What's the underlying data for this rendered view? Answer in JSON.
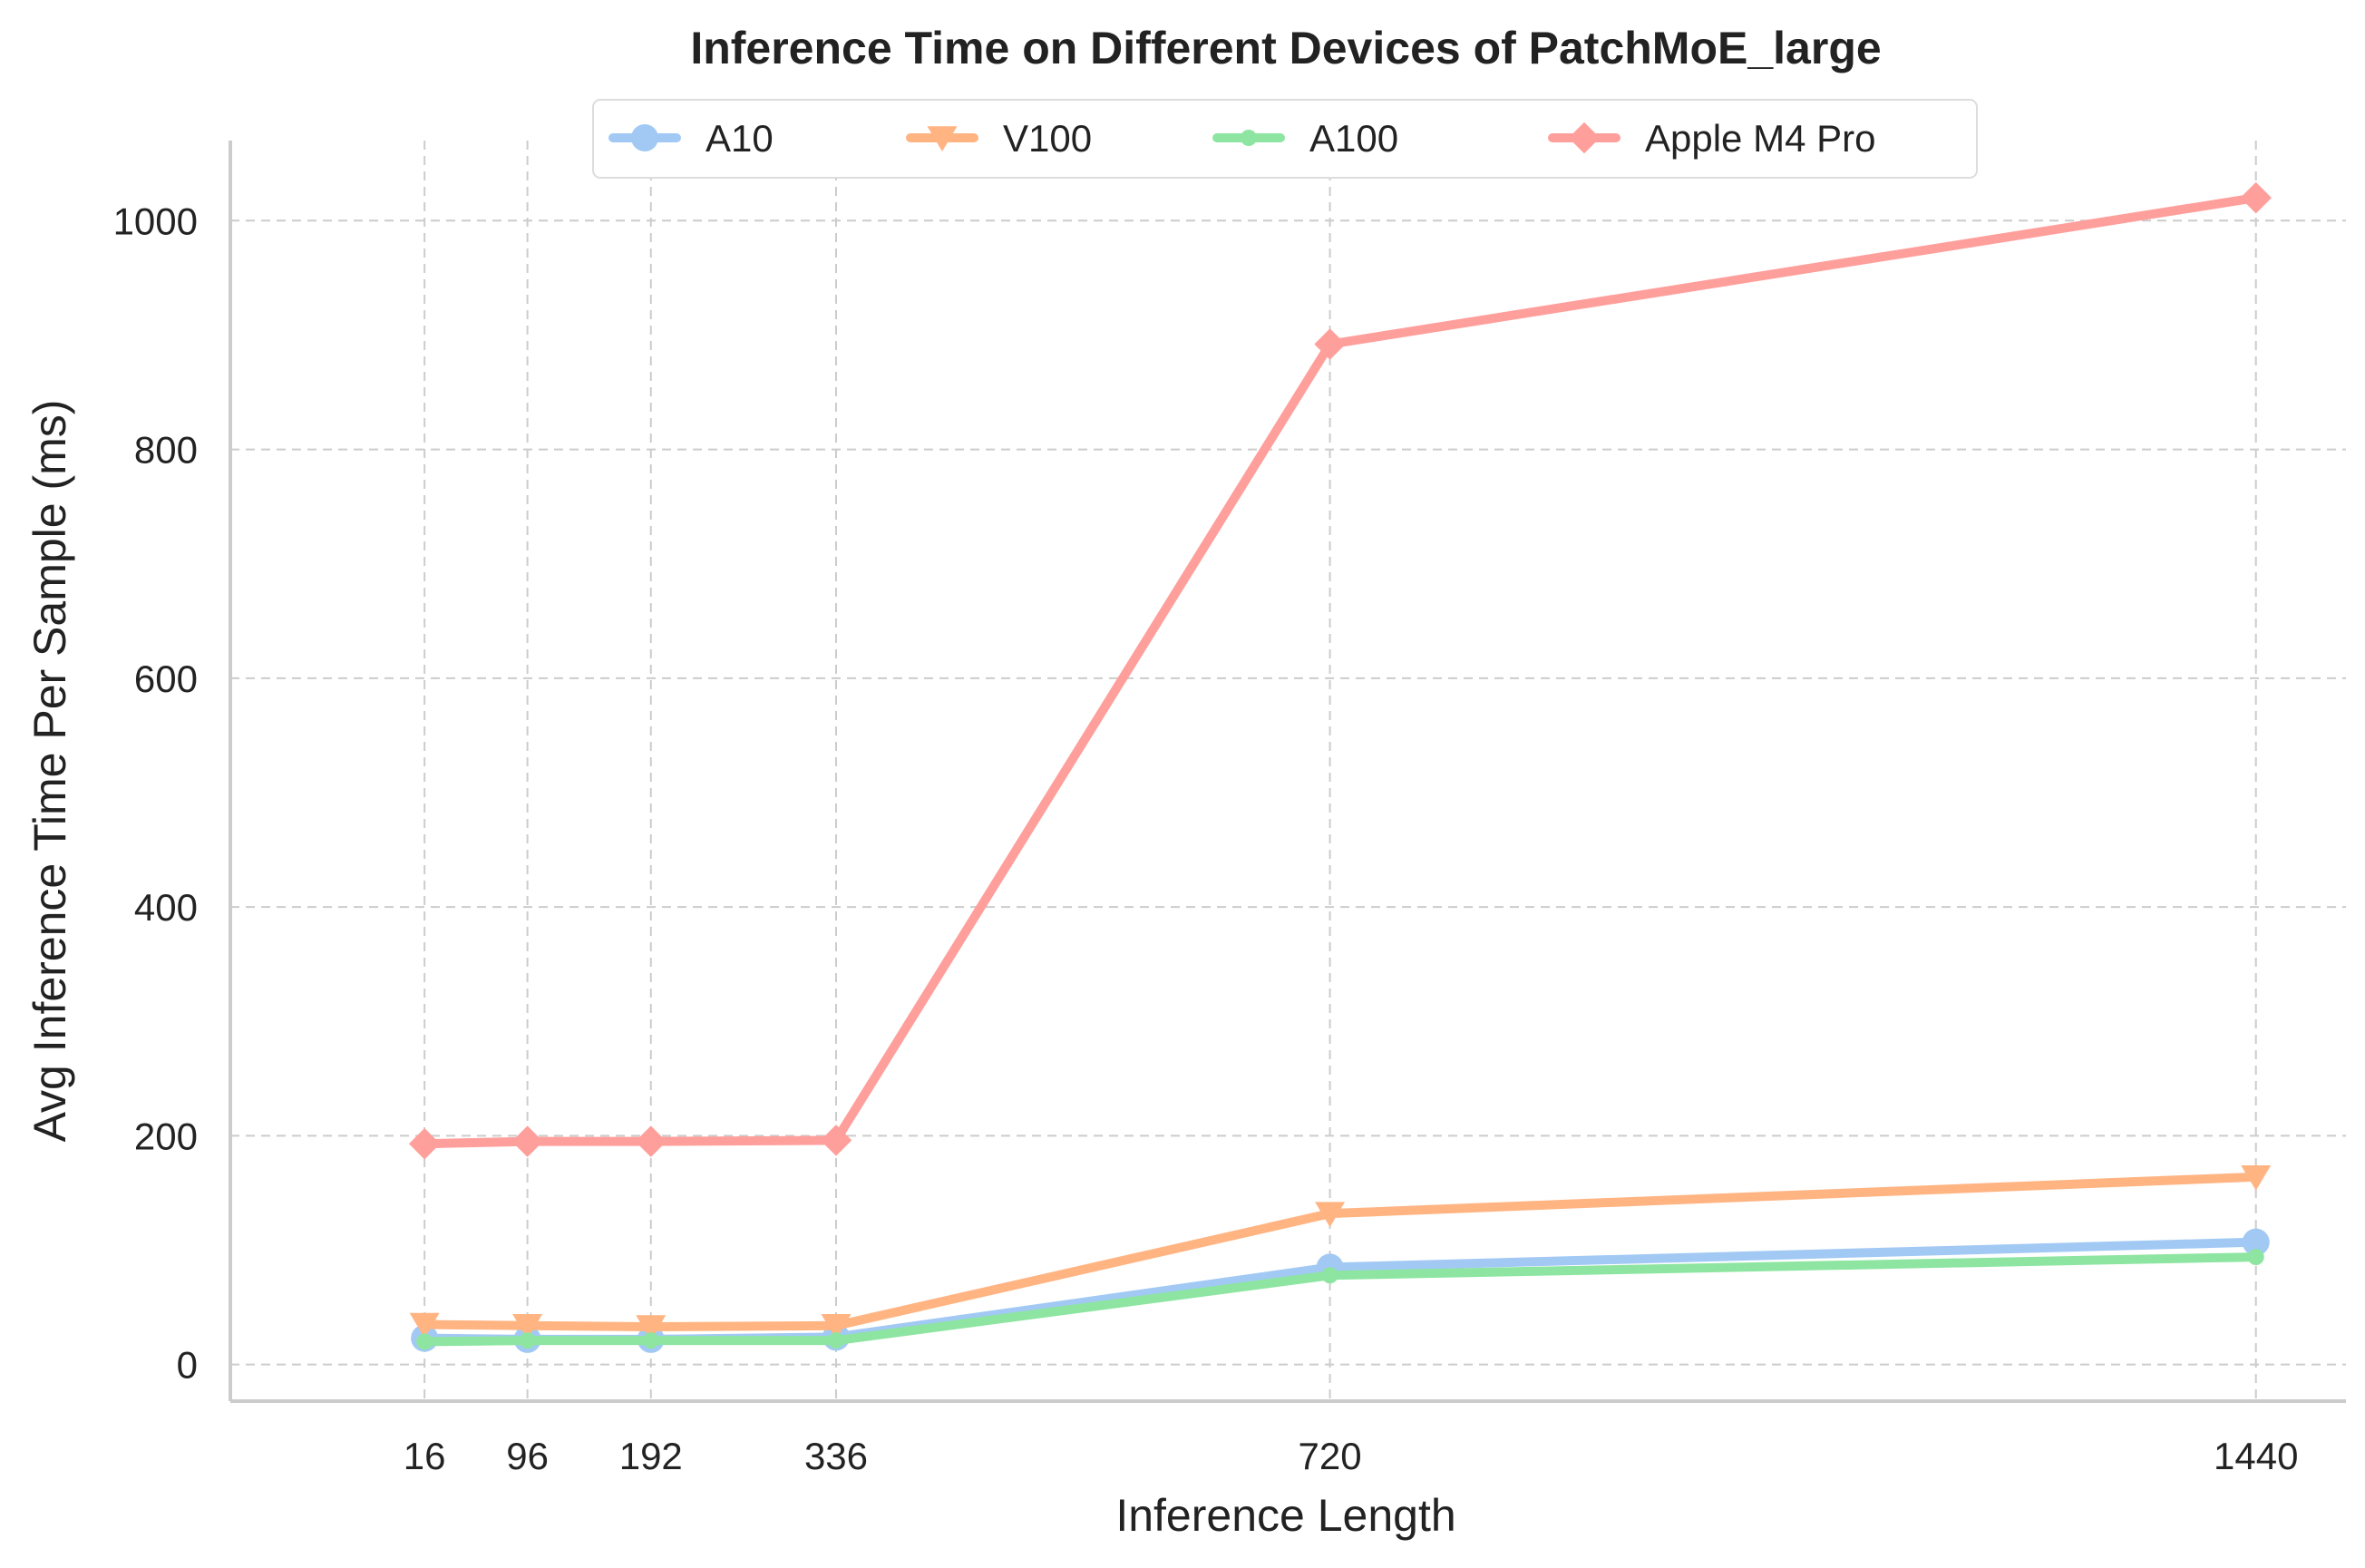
{
  "chart_data": {
    "type": "line",
    "title": "Inference Time on Different Devices of PatchMoE_large",
    "xlabel": "Inference Length",
    "ylabel": "Avg Inference Time Per Sample (ms)",
    "x": [
      16,
      96,
      192,
      336,
      720,
      1440
    ],
    "x_ticks": [
      "16",
      "96",
      "192",
      "336",
      "720",
      "1440"
    ],
    "y_ticks": [
      "0",
      "200",
      "400",
      "600",
      "800",
      "1000"
    ],
    "xlim": [
      -135,
      1510
    ],
    "ylim": [
      -32,
      1070
    ],
    "grid": true,
    "legend_position": "top-center",
    "series": [
      {
        "name": "A10",
        "color": "#a1c9f4",
        "marker": "circle",
        "values": [
          23,
          22,
          22,
          24,
          85,
          107
        ]
      },
      {
        "name": "V100",
        "color": "#ffb482",
        "marker": "triangle-down",
        "values": [
          35,
          34,
          33,
          34,
          132,
          164
        ]
      },
      {
        "name": "A100",
        "color": "#8de5a1",
        "marker": "point",
        "values": [
          20,
          21,
          21,
          21,
          78,
          94
        ]
      },
      {
        "name": "Apple M4 Pro",
        "color": "#ff9f9b",
        "marker": "diamond",
        "values": [
          193,
          195,
          195,
          196,
          892,
          1020
        ]
      }
    ]
  }
}
